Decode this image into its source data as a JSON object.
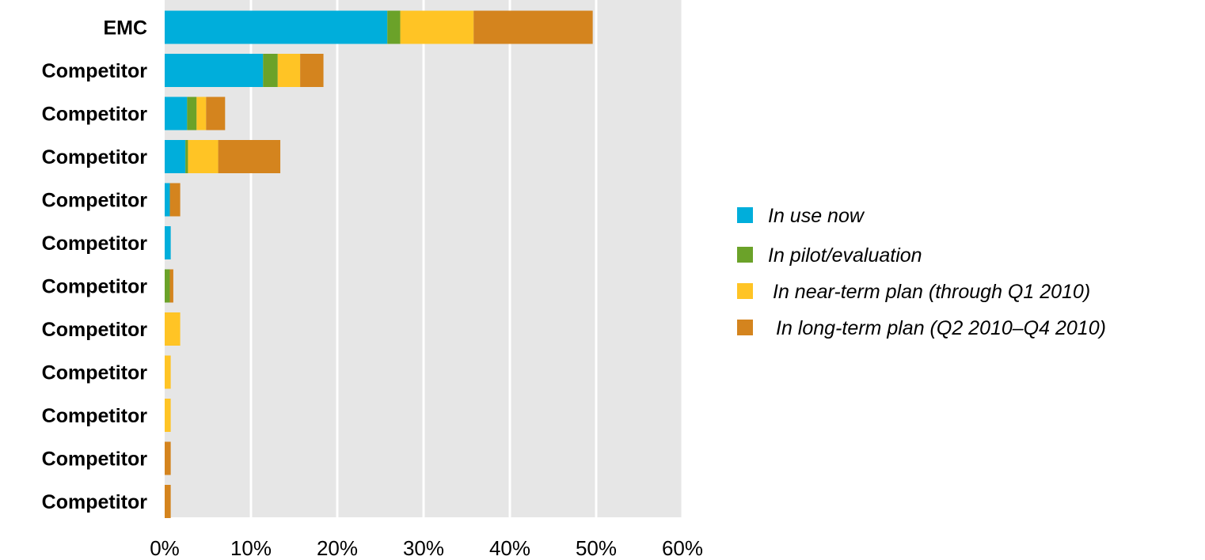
{
  "chart_data": {
    "type": "bar",
    "orientation": "horizontal",
    "stacked": true,
    "categories": [
      "EMC",
      "Competitor",
      "Competitor",
      "Competitor",
      "Competitor",
      "Competitor",
      "Competitor",
      "Competitor",
      "Competitor",
      "Competitor",
      "Competitor",
      "Competitor"
    ],
    "series": [
      {
        "name": "In use now",
        "color": "#00AEDB",
        "values": [
          25.8,
          11.4,
          2.6,
          2.4,
          0.6,
          0.7,
          0,
          0,
          0,
          0,
          0,
          0
        ]
      },
      {
        "name": "In pilot/evaluation",
        "color": "#6BA229",
        "values": [
          1.5,
          1.7,
          1.1,
          0.3,
          0,
          0,
          0.6,
          0,
          0,
          0,
          0,
          0
        ]
      },
      {
        "name": "In near-term plan (through Q1 2010)",
        "color": "#FFC425",
        "values": [
          8.5,
          2.6,
          1.1,
          3.5,
          0,
          0,
          0,
          1.8,
          0.7,
          0.7,
          0,
          0
        ]
      },
      {
        "name": "In long-term plan (Q2 2010–Q4 2010)",
        "color": "#D4841E",
        "values": [
          13.8,
          2.7,
          2.2,
          7.2,
          1.2,
          0,
          0.4,
          0,
          0,
          0,
          0.7,
          0.7
        ]
      }
    ],
    "xlim": [
      0,
      60
    ],
    "xticks": [
      "0%",
      "10%",
      "20%",
      "30%",
      "40%",
      "50%",
      "60%"
    ],
    "grid": true,
    "legend": "right",
    "plot_background": "#E6E6E6"
  }
}
